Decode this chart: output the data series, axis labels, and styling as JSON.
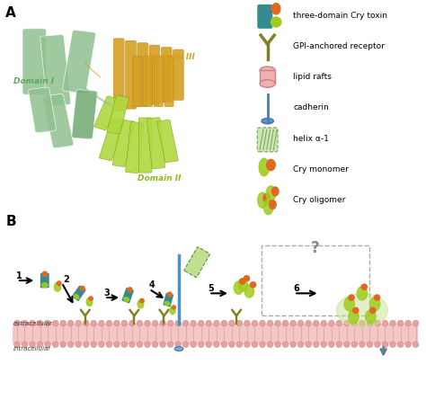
{
  "fig_width": 4.74,
  "fig_height": 4.45,
  "dpi": 100,
  "bg_color": "#ffffff",
  "panel_A_label": "A",
  "panel_B_label": "B",
  "legend_items": [
    "three-domain Cry toxin",
    "GPI-anchored receptor",
    "lipid rafts",
    "cadherin",
    "helix α-1",
    "Cry monomer",
    "Cry oligomer"
  ],
  "domain_I_color": "#90c090",
  "domain_II_color": "#b0d840",
  "domain_III_color": "#d4a020",
  "teal_color": "#208080",
  "orange_color": "#e06820",
  "green_yellow": "#a0cc20",
  "pink_membrane": "#f0b0b0",
  "light_blue": "#90b8d8",
  "olive_color": "#808020",
  "light_green_alpha": "#c0e080",
  "step_numbers": [
    "1",
    "2",
    "3",
    "4",
    "5",
    "6"
  ],
  "question_mark": "?",
  "extracellular_label": "extracellular",
  "intracellular_label": "intracellular"
}
